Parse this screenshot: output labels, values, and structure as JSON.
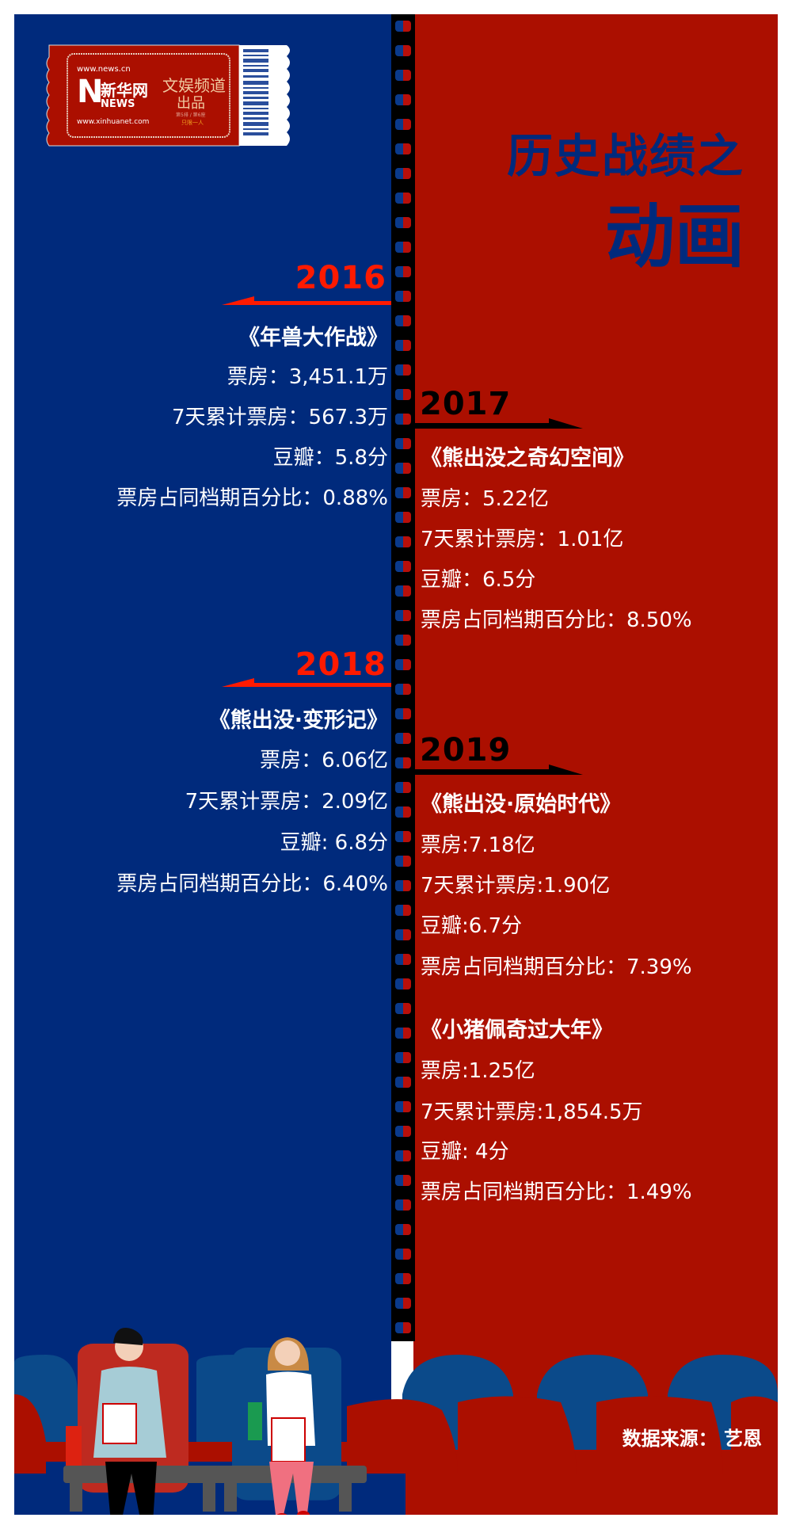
{
  "header": {
    "title_line1": "历史战绩之",
    "title_line2": "动画"
  },
  "ticket": {
    "site_top": "www.news.cn",
    "brand_cn": "新华网",
    "brand_en": "NEWS",
    "site_bottom": "www.xinhuanet.com",
    "channel": "文娱频道",
    "produced": "出品",
    "small1": "第5排 / 第6座",
    "small2": "只限一人"
  },
  "colors": {
    "blue": "#002a7c",
    "red": "#ab0f00",
    "year_left": "#ff1a00",
    "year_right": "#000000"
  },
  "entries": [
    {
      "year": "2016",
      "title": "《年兽大作战》",
      "rows": [
        "票房：3,451.1万",
        "7天累计票房：567.3万",
        "豆瓣：5.8分",
        "票房占同档期百分比：0.88%"
      ]
    },
    {
      "year": "2017",
      "title": "《熊出没之奇幻空间》",
      "rows": [
        "票房：5.22亿",
        "7天累计票房：1.01亿",
        "豆瓣：6.5分",
        "票房占同档期百分比：8.50%"
      ]
    },
    {
      "year": "2018",
      "title": "《熊出没·变形记》",
      "rows": [
        "票房：6.06亿",
        "7天累计票房：2.09亿",
        "豆瓣: 6.8分",
        "票房占同档期百分比：6.40%"
      ]
    },
    {
      "year": "2019",
      "title": "《熊出没·原始时代》",
      "rows": [
        "票房:7.18亿",
        "7天累计票房:1.90亿",
        "豆瓣:6.7分",
        "票房占同档期百分比：7.39%"
      ]
    },
    {
      "year": "",
      "title": "《小猪佩奇过大年》",
      "rows": [
        "票房:1.25亿",
        "7天累计票房:1,854.5万",
        "豆瓣: 4分",
        "票房占同档期百分比：1.49%"
      ]
    }
  ],
  "footer": {
    "source": "数据来源： 艺恩"
  }
}
